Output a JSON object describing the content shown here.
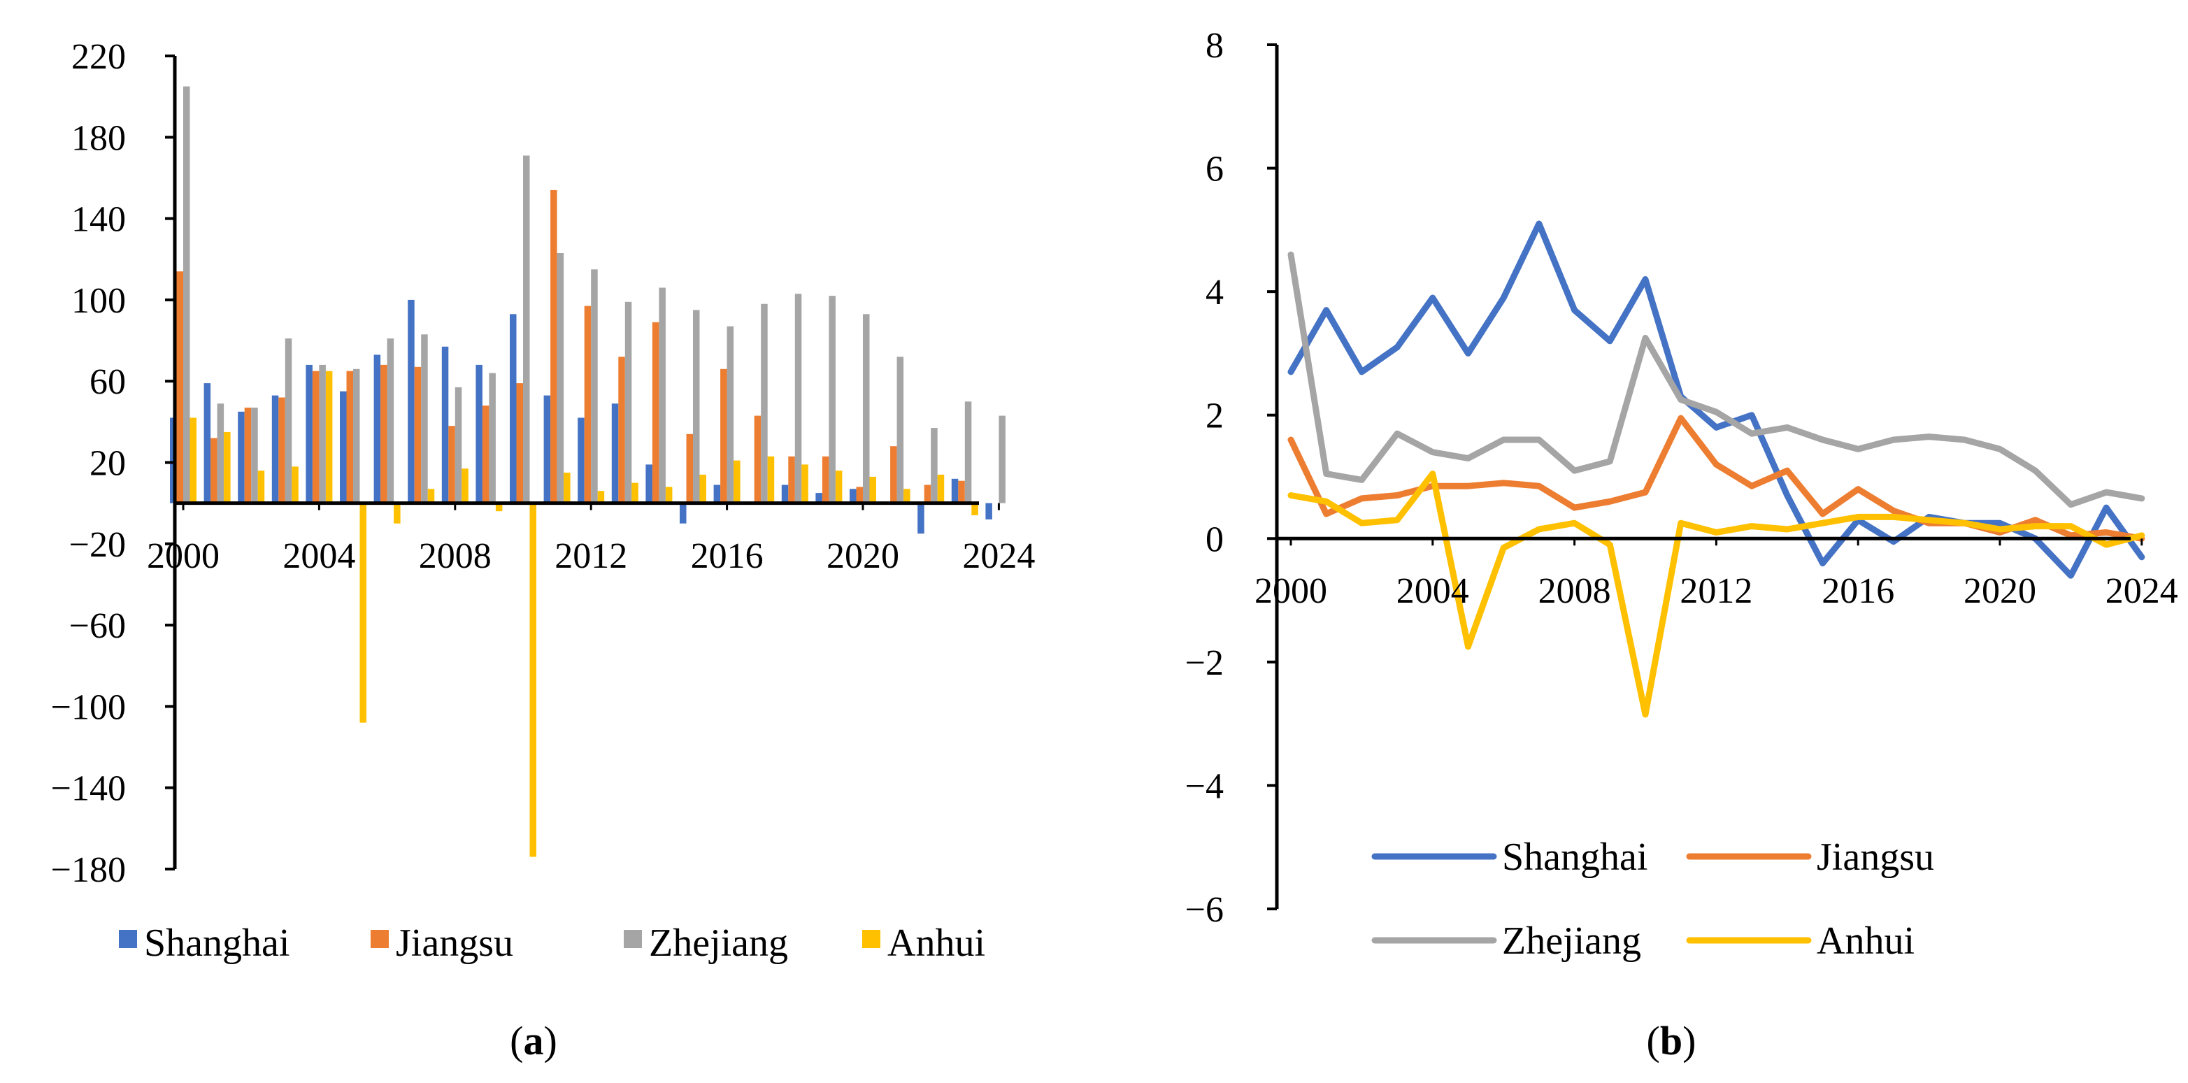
{
  "chart_data": [
    {
      "id": "a",
      "type": "bar",
      "caption_open": "(",
      "caption": "a",
      "caption_close": ")",
      "x": [
        2000,
        2001,
        2002,
        2003,
        2004,
        2005,
        2006,
        2007,
        2008,
        2009,
        2010,
        2011,
        2012,
        2013,
        2014,
        2015,
        2016,
        2017,
        2018,
        2019,
        2020,
        2021,
        2022,
        2023,
        2024
      ],
      "x_tick_labels": [
        "2000",
        "2004",
        "2008",
        "2012",
        "2016",
        "2020",
        "2024"
      ],
      "ylim": [
        -180,
        220
      ],
      "y_ticks": [
        220,
        180,
        140,
        100,
        60,
        20,
        -20,
        -60,
        -100,
        -140,
        -180
      ],
      "y_tick_labels": [
        "220",
        "180",
        "140",
        "100",
        "60",
        "20",
        "−20",
        "−60",
        "−100",
        "−140",
        "−180"
      ],
      "legend_position": "bottom",
      "series": [
        {
          "name": "Shanghai",
          "color": "#4472C4",
          "values": [
            42,
            59,
            45,
            53,
            68,
            55,
            73,
            100,
            77,
            68,
            93,
            53,
            42,
            49,
            19,
            -10,
            9,
            null,
            9,
            5,
            7,
            null,
            -15,
            12,
            -8
          ]
        },
        {
          "name": "Jiangsu",
          "color": "#ED7D31",
          "values": [
            114,
            32,
            47,
            52,
            65,
            65,
            68,
            67,
            38,
            48,
            59,
            154,
            97,
            72,
            89,
            34,
            66,
            43,
            23,
            23,
            8,
            28,
            9,
            11,
            null
          ]
        },
        {
          "name": "Zhejiang",
          "color": "#A5A5A5",
          "values": [
            205,
            49,
            47,
            81,
            68,
            66,
            81,
            83,
            57,
            64,
            171,
            123,
            115,
            99,
            106,
            95,
            87,
            98,
            103,
            102,
            93,
            72,
            37,
            50,
            43
          ]
        },
        {
          "name": "Anhui",
          "color": "#FFC000",
          "values": [
            42,
            35,
            16,
            18,
            65,
            -108,
            -10,
            7,
            17,
            -4,
            -174,
            15,
            6,
            10,
            8,
            14,
            21,
            23,
            19,
            16,
            13,
            7,
            14,
            -6,
            null
          ]
        }
      ]
    },
    {
      "id": "b",
      "type": "line",
      "caption_open": "(",
      "caption": "b",
      "caption_close": ")",
      "x": [
        2000,
        2001,
        2002,
        2003,
        2004,
        2005,
        2006,
        2007,
        2008,
        2009,
        2010,
        2011,
        2012,
        2013,
        2014,
        2015,
        2016,
        2017,
        2018,
        2019,
        2020,
        2021,
        2022,
        2023,
        2024
      ],
      "x_tick_labels": [
        "2000",
        "2004",
        "2008",
        "2012",
        "2016",
        "2020",
        "2024"
      ],
      "ylim": [
        -6,
        8
      ],
      "y_ticks": [
        8,
        6,
        4,
        2,
        0,
        -2,
        -4,
        -6
      ],
      "y_tick_labels": [
        "8",
        "6",
        "4",
        "2",
        "0",
        "−2",
        "−4",
        "−6"
      ],
      "legend_position": "bottom",
      "series": [
        {
          "name": "Shanghai",
          "color": "#4472C4",
          "values": [
            2.7,
            3.7,
            2.7,
            3.1,
            3.9,
            3.0,
            3.9,
            5.1,
            3.7,
            3.2,
            4.2,
            2.3,
            1.8,
            2.0,
            0.7,
            -0.4,
            0.3,
            -0.05,
            0.35,
            0.25,
            0.25,
            0.0,
            -0.6,
            0.5,
            -0.3
          ]
        },
        {
          "name": "Jiangsu",
          "color": "#ED7D31",
          "values": [
            1.6,
            0.4,
            0.65,
            0.7,
            0.85,
            0.85,
            0.9,
            0.85,
            0.5,
            0.6,
            0.75,
            1.95,
            1.2,
            0.85,
            1.1,
            0.4,
            0.8,
            0.45,
            0.25,
            0.25,
            0.1,
            0.3,
            0.05,
            0.1,
            0.0
          ]
        },
        {
          "name": "Zhejiang",
          "color": "#A5A5A5",
          "values": [
            4.6,
            1.05,
            0.95,
            1.7,
            1.4,
            1.3,
            1.6,
            1.6,
            1.1,
            1.25,
            3.25,
            2.25,
            2.05,
            1.7,
            1.8,
            1.6,
            1.45,
            1.6,
            1.65,
            1.6,
            1.45,
            1.1,
            0.55,
            0.75,
            0.65
          ]
        },
        {
          "name": "Anhui",
          "color": "#FFC000",
          "values": [
            0.7,
            0.6,
            0.25,
            0.3,
            1.05,
            -1.75,
            -0.15,
            0.15,
            0.25,
            -0.1,
            -2.85,
            0.25,
            0.1,
            0.2,
            0.15,
            0.25,
            0.35,
            0.35,
            0.3,
            0.25,
            0.15,
            0.2,
            0.2,
            -0.1,
            0.05
          ]
        }
      ]
    }
  ]
}
